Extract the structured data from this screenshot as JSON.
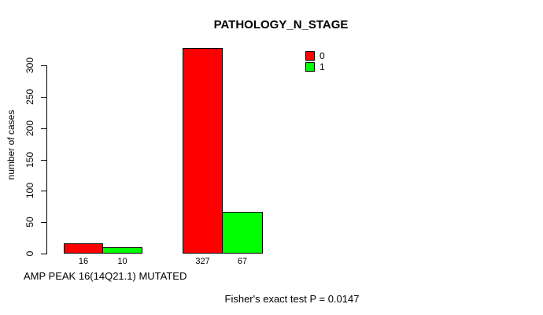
{
  "title": "PATHOLOGY_N_STAGE",
  "y_axis": {
    "label": "number of cases",
    "ticks": [
      0,
      50,
      100,
      150,
      200,
      250,
      300
    ]
  },
  "legend": {
    "items": [
      {
        "label": "0",
        "color": "#ff0000"
      },
      {
        "label": "1",
        "color": "#00ff00"
      }
    ]
  },
  "x_caption": "AMP PEAK 16(14Q21.1) MUTATED",
  "footer": "Fisher's exact test P = 0.0147",
  "chart_data": {
    "type": "bar",
    "title": "PATHOLOGY_N_STAGE",
    "xlabel": "AMP PEAK 16(14Q21.1) MUTATED",
    "ylabel": "number of cases",
    "ylim": [
      0,
      327
    ],
    "yticks": [
      0,
      50,
      100,
      150,
      200,
      250,
      300
    ],
    "grid": false,
    "legend_position": "top-right",
    "categories": [
      "group-1",
      "group-2"
    ],
    "series": [
      {
        "name": "0",
        "color": "#ff0000",
        "values": [
          16,
          327
        ]
      },
      {
        "name": "1",
        "color": "#00ff00",
        "values": [
          10,
          67
        ]
      }
    ],
    "bar_value_labels": [
      "16",
      "10",
      "327",
      "67"
    ],
    "annotation": "Fisher's exact test P = 0.0147"
  }
}
